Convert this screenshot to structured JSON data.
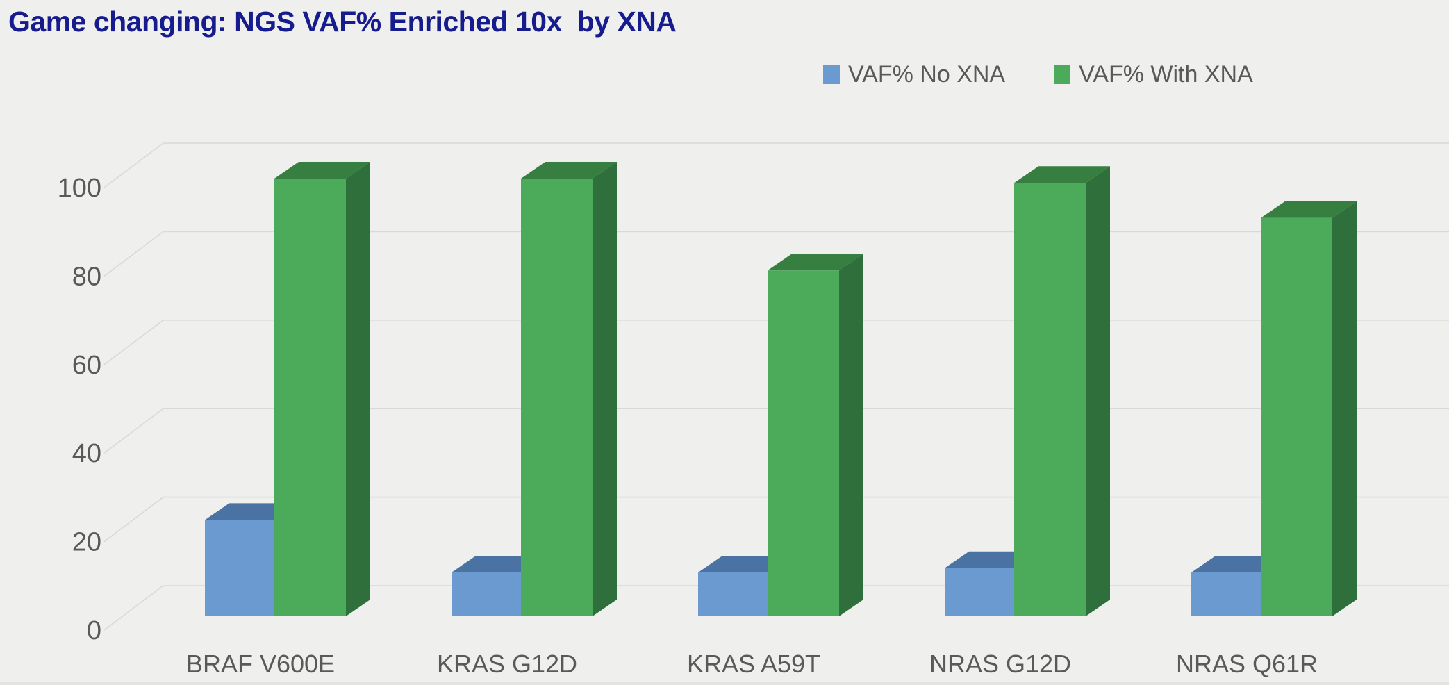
{
  "title": {
    "text": "Game changing: NGS VAF% Enriched 10x  by XNA",
    "color": "#161b8e"
  },
  "legend": {
    "items": [
      {
        "label": "VAF% No XNA",
        "swatch_color": "#6a9ad0"
      },
      {
        "label": "VAF% With XNA",
        "swatch_color": "#4bab5b"
      }
    ]
  },
  "chart_data": {
    "type": "bar",
    "style": "3d-column",
    "title": "Game changing: NGS VAF% Enriched 10x  by XNA",
    "categories": [
      "BRAF V600E",
      "KRAS G12D",
      "KRAS A59T",
      "NRAS G12D",
      "NRAS Q61R"
    ],
    "series": [
      {
        "name": "VAF% No XNA",
        "values": [
          22,
          10,
          10,
          11,
          10
        ],
        "color_front": "#6a9ad0",
        "color_top": "#4a73a3",
        "color_side": "#41669a"
      },
      {
        "name": "VAF% With XNA",
        "values": [
          100,
          100,
          79,
          99,
          91
        ],
        "color_front": "#4bab5b",
        "color_top": "#377f41",
        "color_side": "#2f6f3b"
      }
    ],
    "xlabel": "",
    "ylabel": "",
    "yticks": [
      0,
      20,
      40,
      60,
      80,
      100
    ],
    "ylim": [
      0,
      100
    ],
    "grid": true,
    "legend_position": "top-right",
    "background_color": "#efefed",
    "gridline_color": "#d9d9d7",
    "tick_label_color": "#595959",
    "category_label_color": "#595959"
  }
}
